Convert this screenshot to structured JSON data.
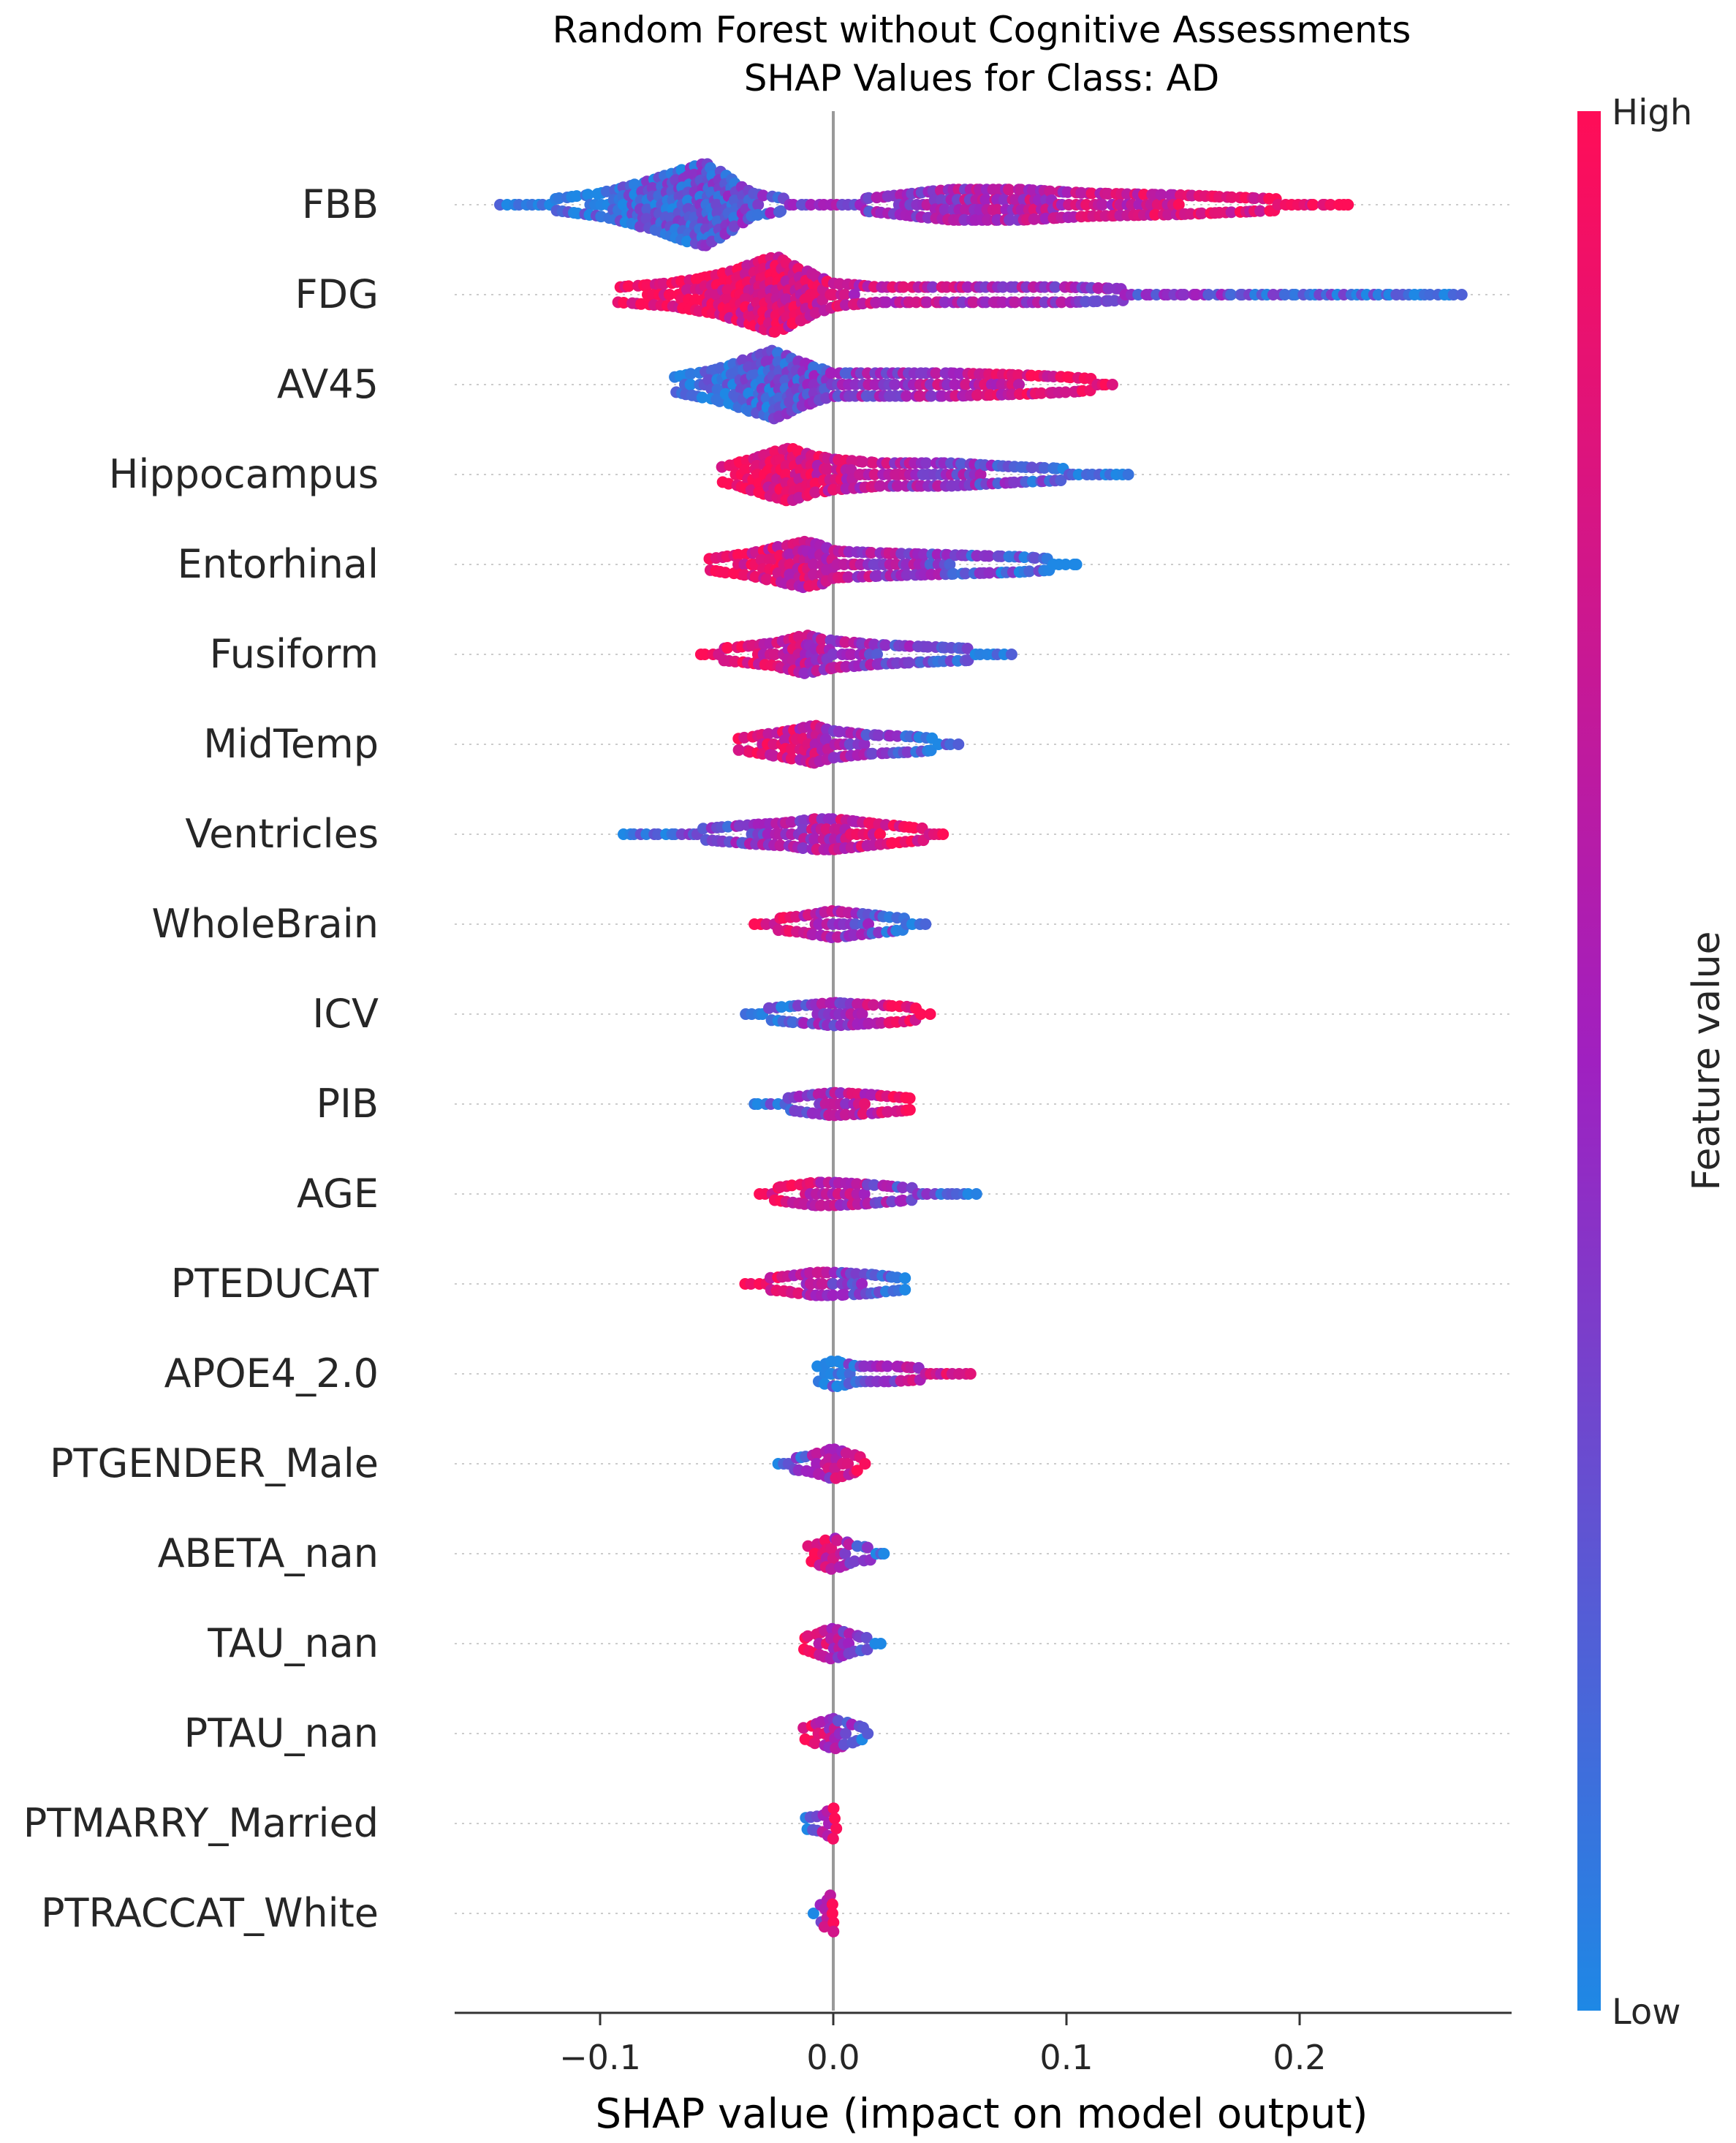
{
  "chart_data": {
    "type": "scatter",
    "subtype": "shap-beeswarm",
    "title": "Random Forest without Cognitive Assessments",
    "subtitle": "SHAP Values for Class: AD",
    "xlabel": "SHAP value (impact on model output)",
    "xlim": [
      -0.162,
      0.29
    ],
    "xticks": [
      -0.1,
      0.0,
      0.1,
      0.2
    ],
    "xtick_labels": [
      "−0.1",
      "0.0",
      "0.1",
      "0.2"
    ],
    "colorbar": {
      "title": "Feature value",
      "high_label": "High",
      "low_label": "Low",
      "low_color": "#1e88e5",
      "mid_color": "#a020c0",
      "high_color": "#ff0d57"
    },
    "features": [
      {
        "name": "FBB",
        "min": -0.142,
        "max": 0.222,
        "density": [
          [
            -0.142,
            1
          ],
          [
            -0.12,
            1.5
          ],
          [
            -0.1,
            3
          ],
          [
            -0.08,
            6
          ],
          [
            -0.065,
            9
          ],
          [
            -0.055,
            11
          ],
          [
            -0.045,
            7
          ],
          [
            -0.035,
            3
          ],
          [
            -0.02,
            1.5
          ],
          [
            0,
            0.8
          ],
          [
            0.02,
            2
          ],
          [
            0.05,
            4
          ],
          [
            0.08,
            4
          ],
          [
            0.11,
            3
          ],
          [
            0.15,
            2.5
          ],
          [
            0.19,
            1.5
          ],
          [
            0.222,
            1
          ]
        ],
        "low_side": "negative"
      },
      {
        "name": "FDG",
        "min": -0.092,
        "max": 0.27,
        "density": [
          [
            -0.092,
            2
          ],
          [
            -0.07,
            3
          ],
          [
            -0.05,
            5
          ],
          [
            -0.035,
            8
          ],
          [
            -0.025,
            10
          ],
          [
            -0.015,
            7
          ],
          [
            0,
            3
          ],
          [
            0.02,
            2
          ],
          [
            0.06,
            2
          ],
          [
            0.1,
            2
          ],
          [
            0.14,
            1.2
          ],
          [
            0.2,
            0.8
          ],
          [
            0.27,
            0.6
          ]
        ],
        "low_side": "positive"
      },
      {
        "name": "AV45",
        "min": -0.068,
        "max": 0.122,
        "density": [
          [
            -0.068,
            2
          ],
          [
            -0.05,
            4
          ],
          [
            -0.035,
            7
          ],
          [
            -0.025,
            9
          ],
          [
            -0.015,
            6
          ],
          [
            0,
            3
          ],
          [
            0.02,
            3
          ],
          [
            0.05,
            3
          ],
          [
            0.08,
            2.5
          ],
          [
            0.1,
            2
          ],
          [
            0.122,
            1
          ]
        ],
        "low_side": "negative"
      },
      {
        "name": "Hippocampus",
        "min": -0.047,
        "max": 0.127,
        "density": [
          [
            -0.047,
            2
          ],
          [
            -0.035,
            4
          ],
          [
            -0.025,
            6
          ],
          [
            -0.018,
            7
          ],
          [
            -0.01,
            5
          ],
          [
            0,
            4
          ],
          [
            0.02,
            3
          ],
          [
            0.05,
            3
          ],
          [
            0.08,
            2
          ],
          [
            0.1,
            1.5
          ],
          [
            0.127,
            1
          ]
        ],
        "low_side": "positive"
      },
      {
        "name": "Entorhinal",
        "min": -0.053,
        "max": 0.105,
        "density": [
          [
            -0.053,
            1.5
          ],
          [
            -0.035,
            3
          ],
          [
            -0.02,
            5
          ],
          [
            -0.013,
            6
          ],
          [
            -0.005,
            5
          ],
          [
            0,
            3.5
          ],
          [
            0.02,
            3
          ],
          [
            0.05,
            2.5
          ],
          [
            0.08,
            2
          ],
          [
            0.105,
            1
          ]
        ],
        "low_side": "positive"
      },
      {
        "name": "Fusiform",
        "min": -0.057,
        "max": 0.076,
        "density": [
          [
            -0.057,
            1
          ],
          [
            -0.04,
            2
          ],
          [
            -0.025,
            3
          ],
          [
            -0.012,
            5
          ],
          [
            -0.005,
            4
          ],
          [
            0,
            3.5
          ],
          [
            0.02,
            2.5
          ],
          [
            0.04,
            2
          ],
          [
            0.06,
            1.5
          ],
          [
            0.076,
            1
          ]
        ],
        "low_side": "positive"
      },
      {
        "name": "MidTemp",
        "min": -0.04,
        "max": 0.053,
        "density": [
          [
            -0.04,
            1.5
          ],
          [
            -0.025,
            3
          ],
          [
            -0.015,
            4
          ],
          [
            -0.008,
            5
          ],
          [
            0,
            3.5
          ],
          [
            0.015,
            2.5
          ],
          [
            0.035,
            2
          ],
          [
            0.053,
            1
          ]
        ],
        "low_side": "positive"
      },
      {
        "name": "Ventricles",
        "min": -0.09,
        "max": 0.048,
        "density": [
          [
            -0.09,
            1
          ],
          [
            -0.055,
            1.5
          ],
          [
            -0.035,
            2.5
          ],
          [
            -0.02,
            3
          ],
          [
            -0.008,
            4
          ],
          [
            0,
            4
          ],
          [
            0.015,
            3
          ],
          [
            0.03,
            2
          ],
          [
            0.048,
            1
          ]
        ],
        "low_side": "negative"
      },
      {
        "name": "WholeBrain",
        "min": -0.033,
        "max": 0.04,
        "density": [
          [
            -0.033,
            1
          ],
          [
            -0.015,
            2
          ],
          [
            -0.005,
            3
          ],
          [
            0,
            3.5
          ],
          [
            0.015,
            2.5
          ],
          [
            0.03,
            1.5
          ],
          [
            0.04,
            1
          ]
        ],
        "low_side": "positive"
      },
      {
        "name": "ICV",
        "min": -0.037,
        "max": 0.042,
        "density": [
          [
            -0.037,
            1
          ],
          [
            -0.02,
            2
          ],
          [
            -0.008,
            2.5
          ],
          [
            0,
            3
          ],
          [
            0.015,
            2.5
          ],
          [
            0.03,
            2
          ],
          [
            0.042,
            1
          ]
        ],
        "low_side": "negative"
      },
      {
        "name": "PIB",
        "min": -0.034,
        "max": 0.034,
        "density": [
          [
            -0.034,
            1
          ],
          [
            -0.02,
            1.5
          ],
          [
            -0.008,
            2.5
          ],
          [
            0,
            3
          ],
          [
            0.015,
            2.5
          ],
          [
            0.034,
            1.5
          ]
        ],
        "low_side": "negative"
      },
      {
        "name": "AGE",
        "min": -0.032,
        "max": 0.063,
        "density": [
          [
            -0.032,
            1
          ],
          [
            -0.02,
            2
          ],
          [
            -0.008,
            3
          ],
          [
            0,
            3
          ],
          [
            0.015,
            2.5
          ],
          [
            0.035,
            1.5
          ],
          [
            0.063,
            0.8
          ]
        ],
        "low_side": "positive"
      },
      {
        "name": "PTEDUCAT",
        "min": -0.037,
        "max": 0.031,
        "density": [
          [
            -0.037,
            1
          ],
          [
            -0.02,
            2
          ],
          [
            -0.008,
            3
          ],
          [
            0,
            3
          ],
          [
            0.015,
            2.5
          ],
          [
            0.031,
            1.5
          ]
        ],
        "low_side": "positive"
      },
      {
        "name": "APOE4_2.0",
        "min": -0.006,
        "max": 0.06,
        "density": [
          [
            -0.006,
            2
          ],
          [
            0,
            3.5
          ],
          [
            0.01,
            2
          ],
          [
            0.025,
            2
          ],
          [
            0.038,
            1.5
          ],
          [
            0.06,
            0.8
          ]
        ],
        "low_side": "negative"
      },
      {
        "name": "PTGENDER_Male",
        "min": -0.024,
        "max": 0.015,
        "density": [
          [
            -0.024,
            1
          ],
          [
            -0.01,
            2
          ],
          [
            0,
            4
          ],
          [
            0.01,
            2
          ],
          [
            0.015,
            1
          ]
        ],
        "low_side": "negative"
      },
      {
        "name": "ABETA_nan",
        "min": -0.01,
        "max": 0.023,
        "density": [
          [
            -0.01,
            2
          ],
          [
            0,
            4
          ],
          [
            0.01,
            2
          ],
          [
            0.023,
            1
          ]
        ],
        "low_side": "positive"
      },
      {
        "name": "TAU_nan",
        "min": -0.013,
        "max": 0.02,
        "density": [
          [
            -0.013,
            1.5
          ],
          [
            0,
            4
          ],
          [
            0.01,
            2
          ],
          [
            0.02,
            1
          ]
        ],
        "low_side": "positive"
      },
      {
        "name": "PTAU_nan",
        "min": -0.012,
        "max": 0.017,
        "density": [
          [
            -0.012,
            1.5
          ],
          [
            0,
            4
          ],
          [
            0.01,
            2
          ],
          [
            0.017,
            1
          ]
        ],
        "low_side": "positive"
      },
      {
        "name": "PTMARRY_Married",
        "min": -0.012,
        "max": 0.001,
        "density": [
          [
            -0.012,
            1.5
          ],
          [
            -0.005,
            2
          ],
          [
            0,
            4
          ]
        ],
        "low_side": "negative"
      },
      {
        "name": "PTRACCAT_White",
        "min": -0.008,
        "max": 0.001,
        "density": [
          [
            -0.008,
            1
          ],
          [
            0,
            5
          ]
        ],
        "low_side": "negative"
      }
    ]
  }
}
